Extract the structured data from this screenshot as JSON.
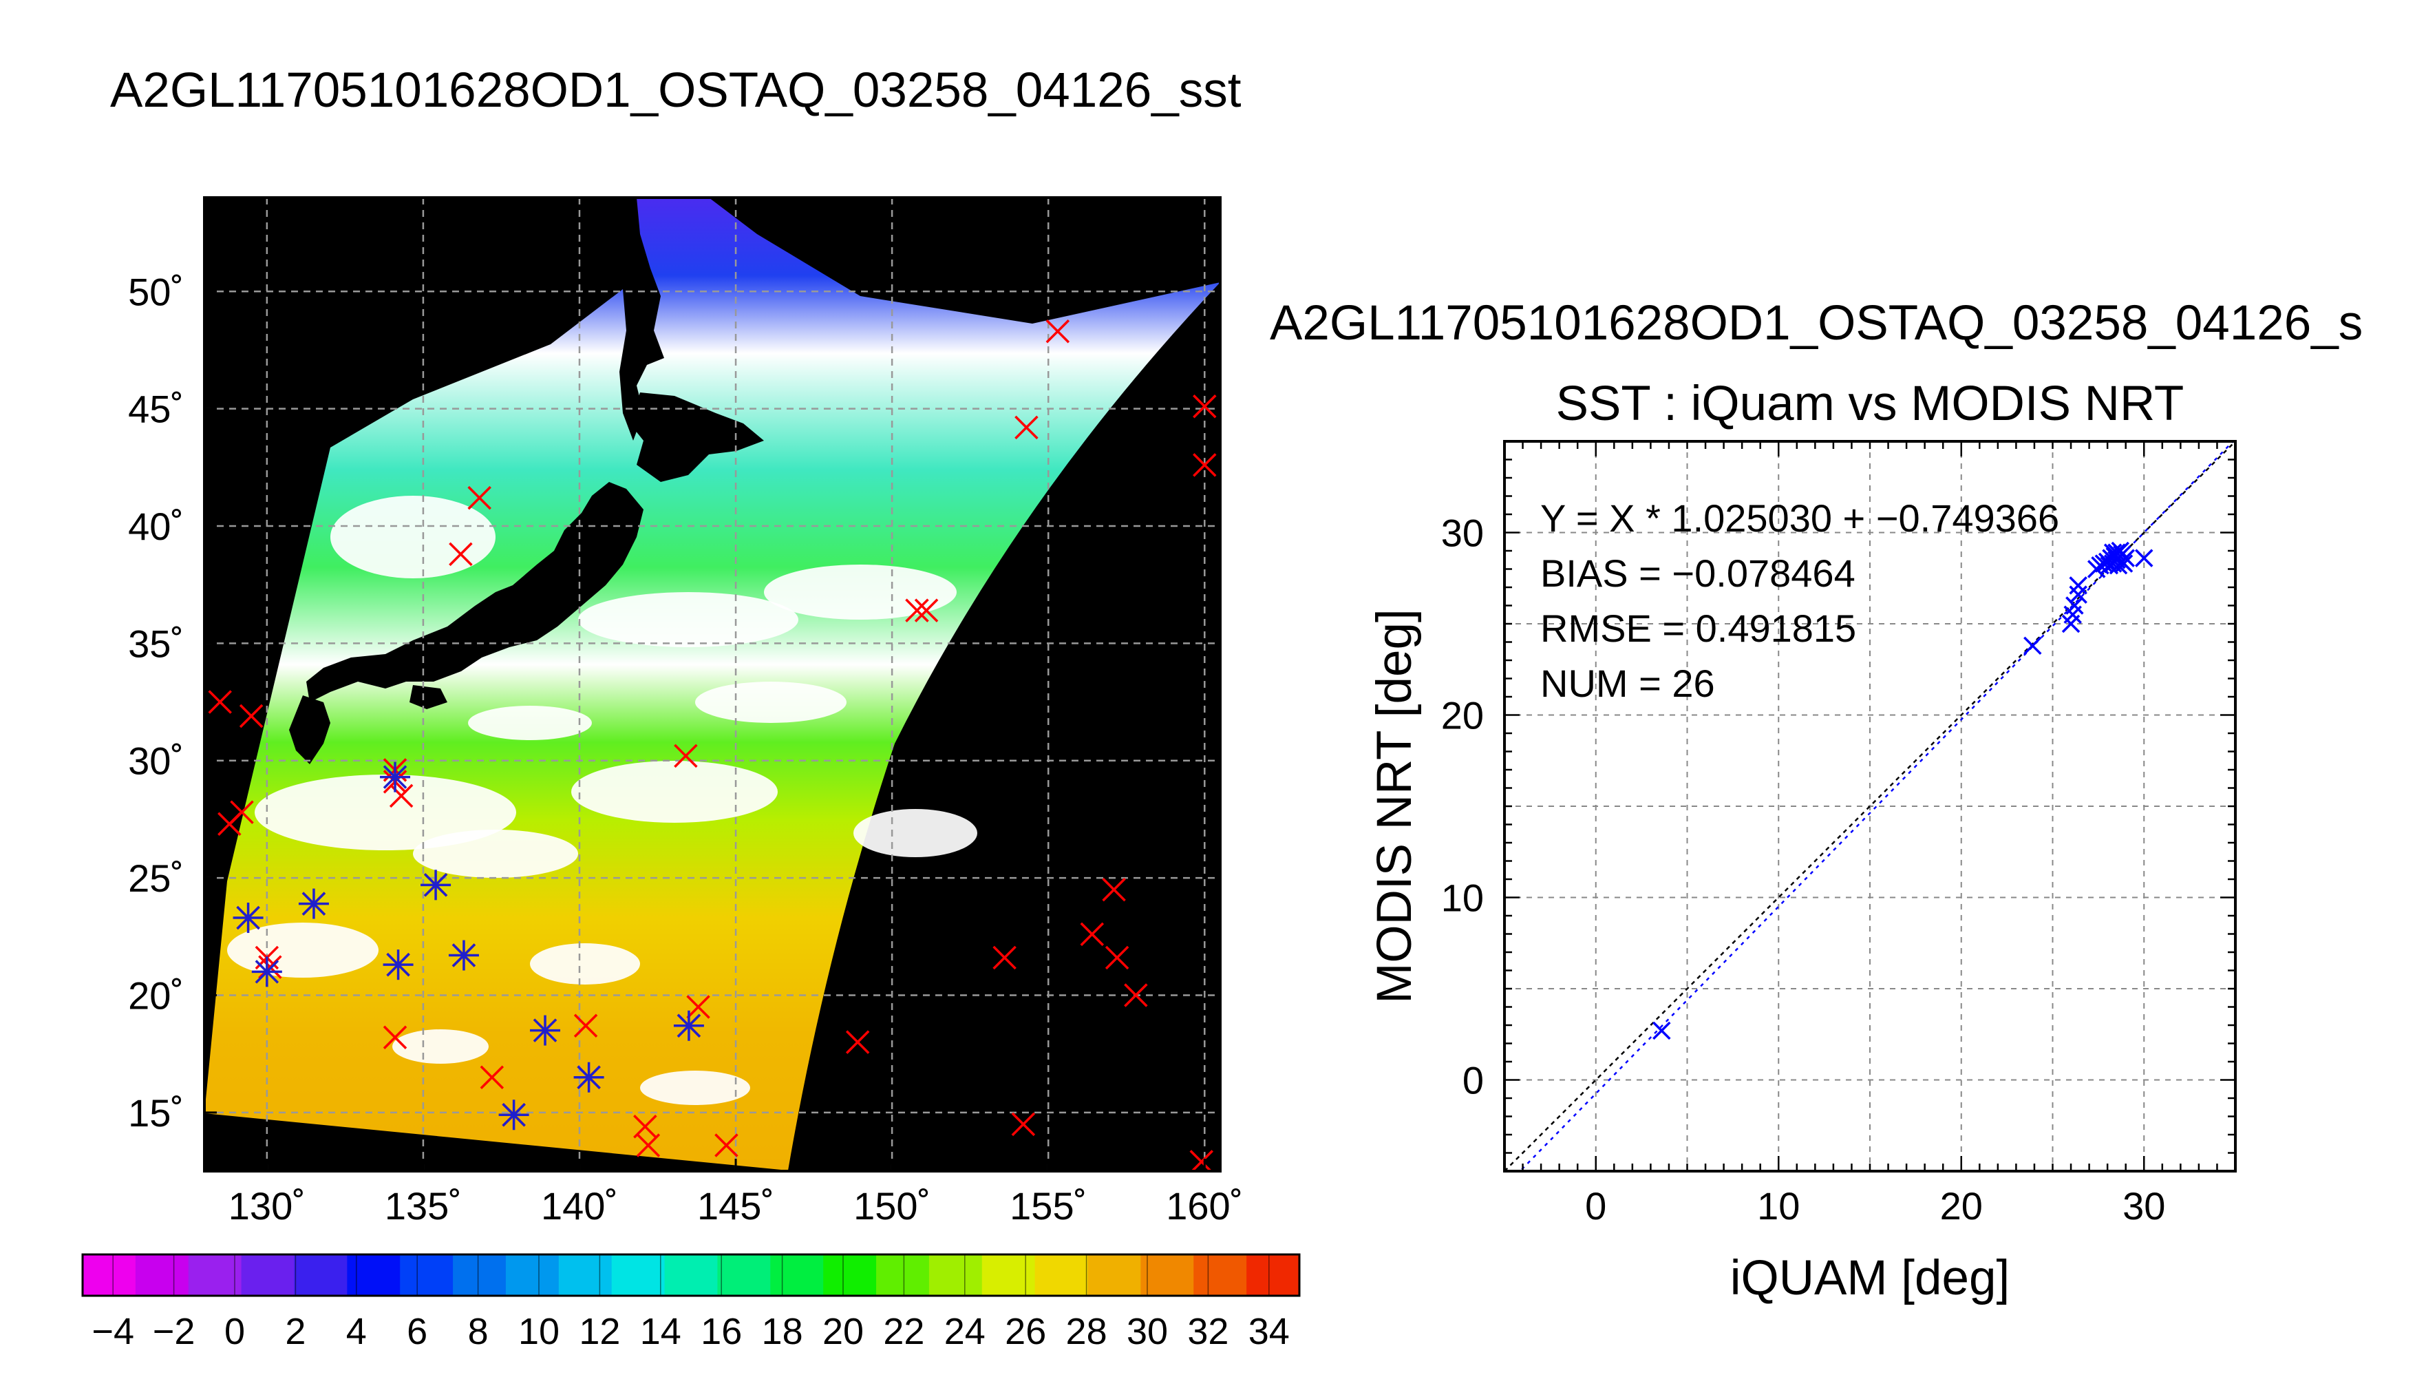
{
  "main_title": "A2GL11705101628OD1_OSTAQ_03258_04126_sst",
  "colors": {
    "land": "#000000",
    "cloud": "#ffffff",
    "buoy_marker": "#ff0000",
    "matchup_marker": "#2020cc",
    "fit_line": "#0000ff",
    "one_to_one_line": "#000000",
    "grid": "#777777"
  },
  "chart_data": [
    {
      "type": "heatmap",
      "description_map": "sea surface temperature swath with match-up markers",
      "x_tick_labels": [
        "130˚",
        "135˚",
        "140˚",
        "145˚",
        "150˚",
        "155˚",
        "160˚"
      ],
      "x_ticks": [
        130,
        135,
        140,
        145,
        150,
        155,
        160
      ],
      "y_tick_labels": [
        "50˚",
        "45˚",
        "40˚",
        "35˚",
        "30˚",
        "25˚",
        "20˚",
        "15˚"
      ],
      "y_ticks": [
        50,
        45,
        40,
        35,
        30,
        25,
        20,
        15
      ],
      "xlim": [
        128,
        160.5
      ],
      "ylim": [
        12.5,
        54
      ],
      "grid": true,
      "colorbar": {
        "tick_labels": [
          "−4",
          "−2",
          "0",
          "2",
          "4",
          "6",
          "8",
          "10",
          "12",
          "14",
          "16",
          "18",
          "20",
          "22",
          "24",
          "26",
          "28",
          "30",
          "32",
          "34"
        ],
        "ticks": [
          -4,
          -2,
          0,
          2,
          4,
          6,
          8,
          10,
          12,
          14,
          16,
          18,
          20,
          22,
          24,
          26,
          28,
          30,
          32,
          34
        ],
        "range": [
          -5,
          35
        ],
        "bins": 20,
        "colors": [
          "#ee00ee",
          "#c800ee",
          "#9a20ee",
          "#6a20ee",
          "#3a20ee",
          "#0010f8",
          "#0040f8",
          "#0070ee",
          "#0098ee",
          "#00c0ee",
          "#00e4e4",
          "#00eeb0",
          "#00ee78",
          "#00ee40",
          "#10ee00",
          "#60ee00",
          "#a0ee00",
          "#d8ee00",
          "#f0d800",
          "#f0b000",
          "#f08800",
          "#f05800",
          "#f02800"
        ]
      },
      "buoys": [
        {
          "lon": 128.5,
          "lat": 32.5
        },
        {
          "lon": 129.5,
          "lat": 31.9
        },
        {
          "lon": 129.2,
          "lat": 27.8
        },
        {
          "lon": 128.8,
          "lat": 27.3
        },
        {
          "lon": 129.4,
          "lat": 23.3
        },
        {
          "lon": 130.1,
          "lat": 21.2
        },
        {
          "lon": 130.0,
          "lat": 21.6
        },
        {
          "lon": 131.5,
          "lat": 23.9
        },
        {
          "lon": 134.1,
          "lat": 29.6
        },
        {
          "lon": 134.1,
          "lat": 29.1
        },
        {
          "lon": 134.3,
          "lat": 28.5
        },
        {
          "lon": 134.2,
          "lat": 21.3
        },
        {
          "lon": 135.4,
          "lat": 24.7
        },
        {
          "lon": 136.3,
          "lat": 21.7
        },
        {
          "lon": 134.1,
          "lat": 18.2
        },
        {
          "lon": 137.2,
          "lat": 16.5
        },
        {
          "lon": 137.9,
          "lat": 14.9
        },
        {
          "lon": 138.9,
          "lat": 18.5
        },
        {
          "lon": 140.2,
          "lat": 18.7
        },
        {
          "lon": 140.3,
          "lat": 16.5
        },
        {
          "lon": 142.1,
          "lat": 14.4
        },
        {
          "lon": 142.2,
          "lat": 13.6
        },
        {
          "lon": 143.5,
          "lat": 18.7
        },
        {
          "lon": 143.8,
          "lat": 19.5
        },
        {
          "lon": 144.7,
          "lat": 13.6
        },
        {
          "lon": 136.8,
          "lat": 41.2
        },
        {
          "lon": 136.2,
          "lat": 38.8
        },
        {
          "lon": 143.4,
          "lat": 30.2
        },
        {
          "lon": 151.1,
          "lat": 36.4
        },
        {
          "lon": 150.8,
          "lat": 36.4
        },
        {
          "lon": 154.3,
          "lat": 44.2
        },
        {
          "lon": 155.3,
          "lat": 48.3
        },
        {
          "lon": 160.0,
          "lat": 45.1
        },
        {
          "lon": 160.0,
          "lat": 42.6
        },
        {
          "lon": 148.9,
          "lat": 18.0
        },
        {
          "lon": 153.6,
          "lat": 21.6
        },
        {
          "lon": 154.2,
          "lat": 14.5
        },
        {
          "lon": 156.4,
          "lat": 22.6
        },
        {
          "lon": 157.1,
          "lat": 24.5
        },
        {
          "lon": 157.2,
          "lat": 21.6
        },
        {
          "lon": 157.8,
          "lat": 20.0
        },
        {
          "lon": 159.9,
          "lat": 12.9
        }
      ],
      "matchups": [
        {
          "lon": 129.4,
          "lat": 23.3
        },
        {
          "lon": 130.0,
          "lat": 21.0
        },
        {
          "lon": 131.5,
          "lat": 23.9
        },
        {
          "lon": 134.1,
          "lat": 29.3
        },
        {
          "lon": 134.2,
          "lat": 21.3
        },
        {
          "lon": 135.4,
          "lat": 24.7
        },
        {
          "lon": 136.3,
          "lat": 21.7
        },
        {
          "lon": 137.9,
          "lat": 14.9
        },
        {
          "lon": 138.9,
          "lat": 18.5
        },
        {
          "lon": 140.3,
          "lat": 16.5
        },
        {
          "lon": 143.5,
          "lat": 18.7
        }
      ]
    },
    {
      "type": "scatter",
      "file_title": "A2GL11705101628OD1_OSTAQ_03258_04126_s",
      "title": "SST : iQuam vs MODIS NRT",
      "xlabel": "iQUAM [deg]",
      "ylabel": "MODIS NRT [deg]",
      "xlim": [
        -5,
        35
      ],
      "ylim": [
        -5,
        35
      ],
      "x_ticks": [
        0,
        10,
        20,
        30
      ],
      "y_ticks": [
        0,
        10,
        20,
        30
      ],
      "x_tick_labels": [
        "0",
        "10",
        "20",
        "30"
      ],
      "y_tick_labels": [
        "0",
        "10",
        "20",
        "30"
      ],
      "grid": true,
      "stats": [
        "Y = X * 1.025030 + −0.749366",
        "BIAS = −0.078464",
        "RMSE = 0.491815",
        "NUM = 26"
      ],
      "fit": {
        "slope": 1.02503,
        "intercept": -0.749366
      },
      "points": [
        [
          3.6,
          2.7
        ],
        [
          23.9,
          23.8
        ],
        [
          26.0,
          25.0
        ],
        [
          26.1,
          25.5
        ],
        [
          26.2,
          26.0
        ],
        [
          26.4,
          26.6
        ],
        [
          26.4,
          27.1
        ],
        [
          27.4,
          28.0
        ],
        [
          27.6,
          28.2
        ],
        [
          27.8,
          28.3
        ],
        [
          28.0,
          28.4
        ],
        [
          28.1,
          28.2
        ],
        [
          28.2,
          28.6
        ],
        [
          28.3,
          28.9
        ],
        [
          28.3,
          28.3
        ],
        [
          28.4,
          28.7
        ],
        [
          28.5,
          28.5
        ],
        [
          28.5,
          28.9
        ],
        [
          28.6,
          28.2
        ],
        [
          28.6,
          28.6
        ],
        [
          28.7,
          29.0
        ],
        [
          28.8,
          28.4
        ],
        [
          28.8,
          28.8
        ],
        [
          28.9,
          28.3
        ],
        [
          29.0,
          28.6
        ],
        [
          30.0,
          28.6
        ]
      ]
    }
  ]
}
